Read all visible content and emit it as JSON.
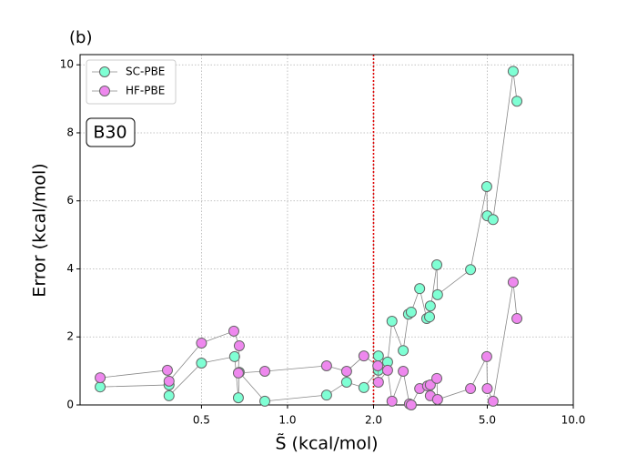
{
  "chart_data": {
    "type": "scatter",
    "title": "(b)",
    "annotation": "B30",
    "xlabel": "S̃ (kcal/mol)",
    "ylabel": "Error (kcal/mol)",
    "xscale": "log",
    "xlim": [
      0.188,
      10
    ],
    "ylim": [
      0,
      10.3
    ],
    "xticks": [
      0.5,
      {
        "value": 1,
        "label": "1.0"
      },
      {
        "value": 2,
        "label": "2.0"
      },
      {
        "value": 5,
        "label": "5.0"
      },
      {
        "value": 10,
        "label": "10.0"
      }
    ],
    "yticks": [
      0,
      2,
      4,
      6,
      8,
      10
    ],
    "grid": true,
    "legend": "upper left",
    "vline": 2,
    "vline_color": "#e00000",
    "series": [
      {
        "name": "SC-PBE",
        "color": "#7fffd4",
        "x": [
          0.221,
          0.385,
          0.385,
          0.5,
          0.653,
          0.673,
          0.678,
          0.833,
          1.37,
          1.61,
          1.85,
          2.08,
          2.08,
          2.24,
          2.32,
          2.54,
          2.65,
          2.71,
          2.9,
          3.07,
          3.16,
          3.14,
          3.33,
          3.35,
          4.37,
          4.98,
          5.0,
          5.24,
          6.16,
          6.35
        ],
        "values": [
          0.53,
          0.59,
          0.27,
          1.23,
          1.42,
          0.21,
          0.96,
          0.11,
          0.29,
          0.67,
          0.51,
          1.02,
          1.44,
          1.26,
          2.46,
          1.6,
          2.67,
          2.73,
          3.42,
          2.54,
          2.91,
          2.59,
          4.12,
          3.24,
          3.98,
          6.42,
          5.56,
          5.45,
          9.81,
          8.93
        ]
      },
      {
        "name": "HF-PBE",
        "color": "#ee88ee",
        "x": [
          0.221,
          0.38,
          0.385,
          0.5,
          0.649,
          0.678,
          0.673,
          0.833,
          1.37,
          1.61,
          1.85,
          2.07,
          2.08,
          2.24,
          2.32,
          2.54,
          2.67,
          2.71,
          2.9,
          3.09,
          3.16,
          3.16,
          3.33,
          3.35,
          4.37,
          4.98,
          5.0,
          5.24,
          6.16,
          6.35
        ],
        "values": [
          0.8,
          1.02,
          0.7,
          1.82,
          2.17,
          1.74,
          0.94,
          0.99,
          1.15,
          0.99,
          1.44,
          1.15,
          0.67,
          1.02,
          0.11,
          0.99,
          0.03,
          0.0,
          0.48,
          0.56,
          0.59,
          0.27,
          0.78,
          0.16,
          0.48,
          1.42,
          0.48,
          0.11,
          3.61,
          2.54
        ]
      }
    ]
  }
}
